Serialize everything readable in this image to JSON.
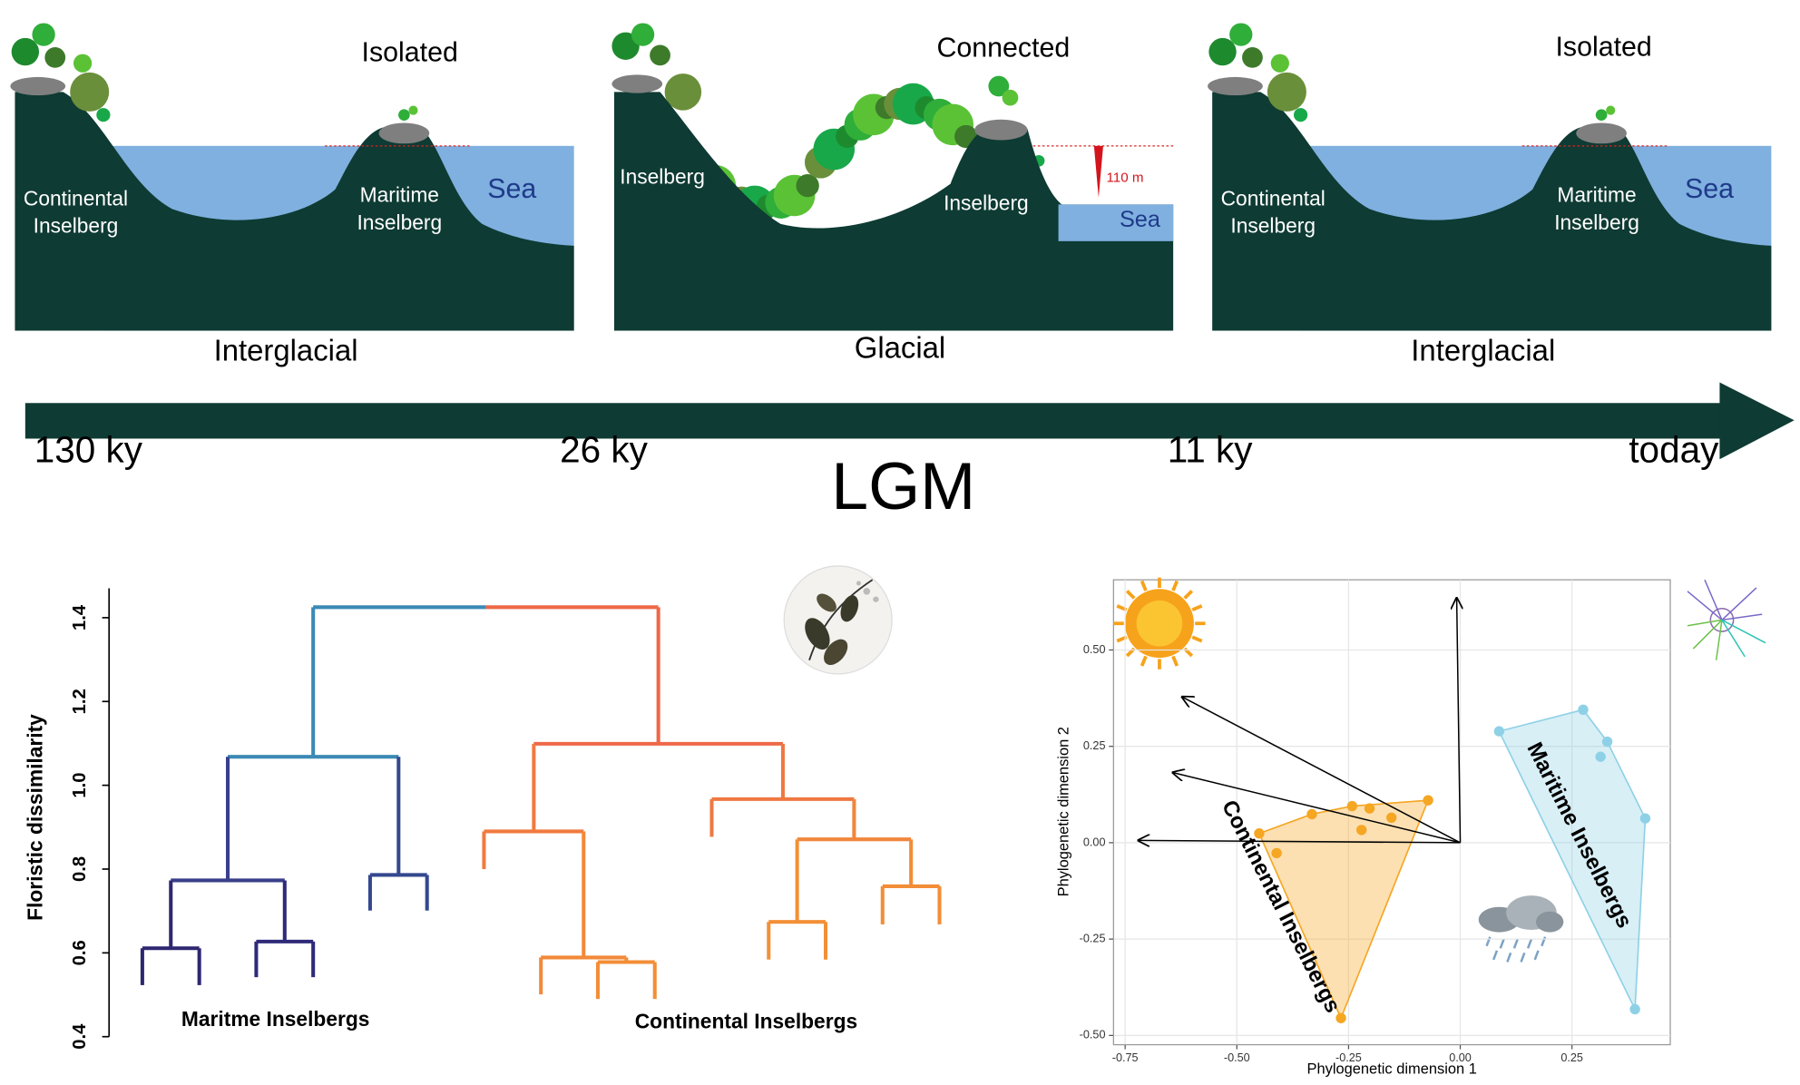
{
  "panels": [
    {
      "status": "Isolated",
      "labels": [
        [
          "Continental",
          "Inselberg"
        ],
        [
          "Maritime",
          "Inselberg"
        ]
      ],
      "sea": "Sea",
      "period": "Interglacial"
    },
    {
      "status": "Connected",
      "labels": [
        [
          "Inselberg"
        ],
        [
          "Inselberg"
        ]
      ],
      "sea": "Sea",
      "depth": "110 m",
      "period": "Glacial"
    },
    {
      "status": "Isolated",
      "labels": [
        [
          "Continental",
          "Inselberg"
        ],
        [
          "Maritime",
          "Inselberg"
        ]
      ],
      "sea": "Sea",
      "period": "Interglacial"
    }
  ],
  "timeline": {
    "ticks": [
      "130 ky",
      "26 ky",
      "11 ky",
      "today"
    ],
    "event": "LGM"
  },
  "chart_data": [
    {
      "type": "dendrogram",
      "ylabel": "Floristic dissimilarity",
      "ylim": [
        0.4,
        1.47
      ],
      "yticks": [
        0.4,
        0.6,
        0.8,
        {
          "value": 1,
          "label": "1.0"
        },
        1.2,
        1.4
      ],
      "groups": [
        "Maritme Inselbergs",
        "Continental Inselbergs"
      ],
      "tree": {
        "height": 1.425,
        "children": [
          {
            "height": 1.068,
            "color": "#3b8ab5",
            "children": [
              {
                "height": 0.773,
                "color": "#3a3f8a",
                "children": [
                  {
                    "height": 0.611,
                    "color": "#2e2770",
                    "children": [
                      {
                        "height": 0.523
                      },
                      {
                        "height": 0.523
                      }
                    ]
                  },
                  {
                    "height": 0.627,
                    "color": "#2f2a78",
                    "children": [
                      {
                        "height": 0.542
                      },
                      {
                        "height": 0.542
                      }
                    ]
                  }
                ]
              },
              {
                "height": 0.786,
                "color": "#34488e",
                "children": [
                  {
                    "height": 0.701
                  },
                  {
                    "height": 0.701
                  }
                ]
              }
            ]
          },
          {
            "height": 1.099,
            "color": "#ee6848",
            "children": [
              {
                "height": 0.89,
                "color": "#f07a40",
                "children": [
                  {
                    "height": 0.8
                  },
                  {
                    "height": 0.589,
                    "color": "#f2893a",
                    "children": [
                      {
                        "height": 0.501
                      },
                      {
                        "height": 0.578,
                        "color": "#f28e36",
                        "children": [
                          {
                            "height": 0.49
                          },
                          {
                            "height": 0.49
                          }
                        ]
                      }
                    ]
                  }
                ]
              },
              {
                "height": 0.967,
                "color": "#ef7842",
                "children": [
                  {
                    "height": 0.877
                  },
                  {
                    "height": 0.871,
                    "color": "#f0863c",
                    "children": [
                      {
                        "height": 0.674,
                        "color": "#f29037",
                        "children": [
                          {
                            "height": 0.584
                          },
                          {
                            "height": 0.584
                          }
                        ]
                      },
                      {
                        "height": 0.759,
                        "color": "#f28d38",
                        "children": [
                          {
                            "height": 0.668
                          },
                          {
                            "height": 0.668
                          }
                        ]
                      }
                    ]
                  }
                ]
              }
            ]
          }
        ]
      }
    },
    {
      "type": "scatter",
      "xlabel": "Phylogenetic dimension 1",
      "ylabel": "Phylogenetic dimension 2",
      "xlim": [
        -0.776,
        0.47
      ],
      "ylim": [
        -0.524,
        0.682
      ],
      "xticks": [
        -0.75,
        {
          "value": -0.5,
          "label": "-0.50"
        },
        -0.25,
        {
          "value": 0,
          "label": "0.00"
        },
        0.25
      ],
      "yticks": [
        {
          "value": -0.5,
          "label": "-0.50"
        },
        -0.25,
        {
          "value": 0,
          "label": "0.00"
        },
        0.25,
        {
          "value": 0.5,
          "label": "0.50"
        }
      ],
      "grid": true,
      "series": [
        {
          "name": "Continental Inselbergs",
          "color": "#f5a623",
          "x": [
            -0.45,
            -0.411,
            -0.332,
            -0.242,
            -0.203,
            -0.221,
            -0.154,
            -0.072,
            -0.267
          ],
          "y": [
            0.024,
            -0.027,
            0.074,
            0.095,
            0.089,
            0.033,
            0.065,
            0.11,
            -0.455
          ]
        },
        {
          "name": "Maritime Inselbergs",
          "color": "#8ed1e6",
          "x": [
            0.087,
            0.275,
            0.329,
            0.314,
            0.414,
            0.391
          ],
          "y": [
            0.289,
            0.345,
            0.262,
            0.223,
            0.063,
            -0.432
          ]
        }
      ],
      "arrows": {
        "x": [
          -0.008,
          -0.622,
          -0.643,
          -0.72
        ],
        "y": [
          0.634,
          0.378,
          0.182,
          0.006
        ]
      }
    }
  ]
}
